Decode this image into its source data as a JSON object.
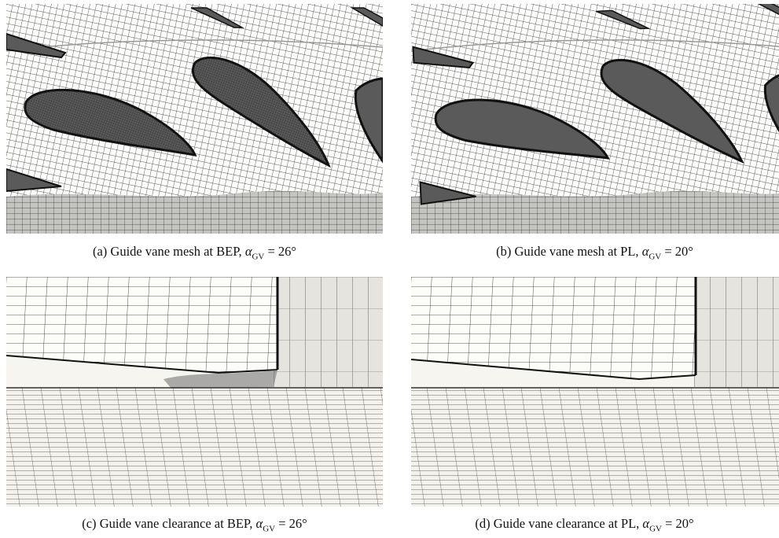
{
  "figure": {
    "panels": [
      {
        "label": "(a)",
        "text": "Guide vane mesh at BEP,",
        "symbol": "α",
        "subscript": "GV",
        "equation": "= 26°"
      },
      {
        "label": "(b)",
        "text": "Guide vane mesh at PL,",
        "symbol": "α",
        "subscript": "GV",
        "equation": "= 20°"
      },
      {
        "label": "(c)",
        "text": "Guide vane clearance at BEP,",
        "symbol": "α",
        "subscript": "GV",
        "equation": "= 26°"
      },
      {
        "label": "(d)",
        "text": "Guide vane clearance at PL,",
        "symbol": "α",
        "subscript": "GV",
        "equation": "= 20°"
      }
    ]
  }
}
